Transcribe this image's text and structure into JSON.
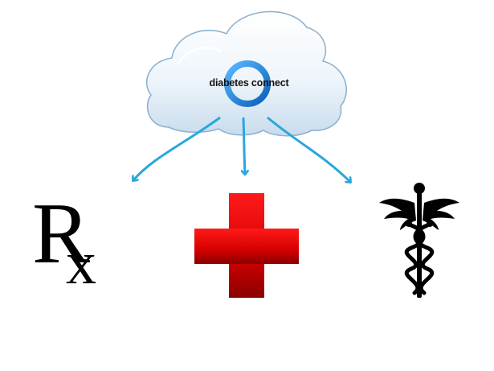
{
  "cloud": {
    "label": "diabetes connect",
    "ring_color": "#1e7fd6"
  },
  "targets": [
    {
      "name": "prescription",
      "symbol": "Rx"
    },
    {
      "name": "red-cross",
      "color": "#d40000"
    },
    {
      "name": "caduceus",
      "color": "#000000"
    }
  ],
  "arrow_color": "#2aa7dc"
}
